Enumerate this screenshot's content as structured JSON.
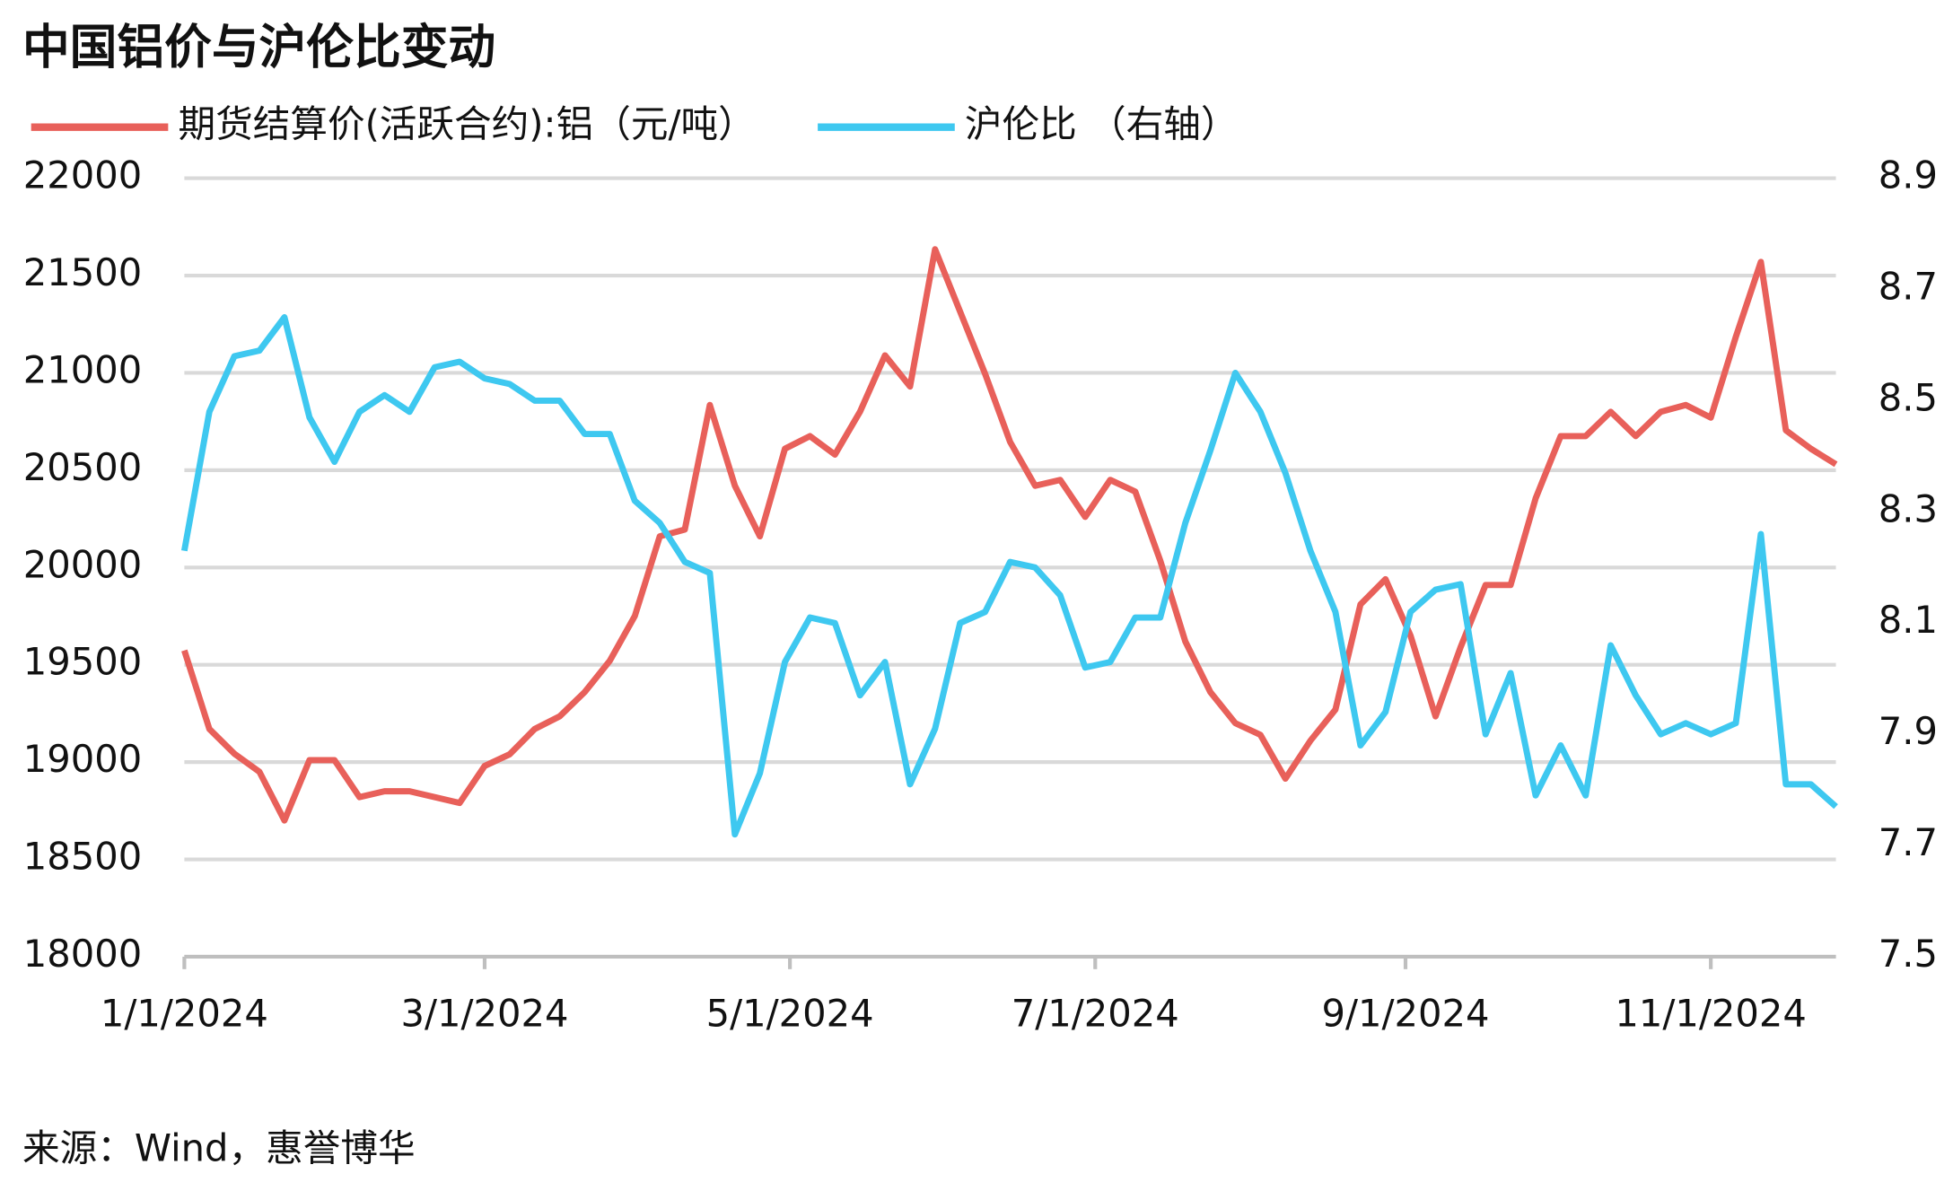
{
  "chart_data": {
    "type": "line",
    "title": "中国铝价与沪伦比变动",
    "source": "来源：Wind，惠誉博华",
    "x": [
      "2024-01-01",
      "2024-01-06",
      "2024-01-11",
      "2024-01-16",
      "2024-01-21",
      "2024-01-26",
      "2024-01-31",
      "2024-02-05",
      "2024-02-10",
      "2024-02-15",
      "2024-02-20",
      "2024-02-25",
      "2024-03-01",
      "2024-03-06",
      "2024-03-11",
      "2024-03-16",
      "2024-03-21",
      "2024-03-26",
      "2024-03-31",
      "2024-04-05",
      "2024-04-10",
      "2024-04-15",
      "2024-04-20",
      "2024-04-25",
      "2024-04-30",
      "2024-05-05",
      "2024-05-10",
      "2024-05-15",
      "2024-05-20",
      "2024-05-25",
      "2024-05-30",
      "2024-06-04",
      "2024-06-09",
      "2024-06-14",
      "2024-06-19",
      "2024-06-24",
      "2024-06-29",
      "2024-07-04",
      "2024-07-09",
      "2024-07-14",
      "2024-07-19",
      "2024-07-24",
      "2024-07-29",
      "2024-08-03",
      "2024-08-08",
      "2024-08-13",
      "2024-08-18",
      "2024-08-23",
      "2024-08-28",
      "2024-09-02",
      "2024-09-07",
      "2024-09-12",
      "2024-09-17",
      "2024-09-22",
      "2024-09-27",
      "2024-10-02",
      "2024-10-07",
      "2024-10-12",
      "2024-10-17",
      "2024-10-22",
      "2024-10-27",
      "2024-11-01",
      "2024-11-06",
      "2024-11-11",
      "2024-11-16",
      "2024-11-21",
      "2024-11-26"
    ],
    "series": [
      {
        "name": "期货结算价(活跃合约):铝（元/吨）",
        "color": "#e8605a",
        "values": [
          19574,
          19170,
          19043,
          18950,
          18700,
          19010,
          19010,
          18820,
          18850,
          18850,
          18820,
          18790,
          18980,
          19040,
          19170,
          19235,
          19360,
          19520,
          19750,
          20160,
          20195,
          20835,
          20420,
          20160,
          20610,
          20675,
          20580,
          20800,
          21090,
          20930,
          21635,
          21315,
          20995,
          20645,
          20420,
          20450,
          20260,
          20450,
          20390,
          20035,
          19620,
          19360,
          19200,
          19140,
          18915,
          19110,
          19270,
          19810,
          19940,
          19650,
          19235,
          19590,
          19910,
          19910,
          20355,
          20675,
          20675,
          20800,
          20675,
          20800,
          20835,
          20770,
          21185,
          21570,
          20705,
          20610,
          20530
        ]
      },
      {
        "name": "沪伦比 （右轴）",
        "color": "#3ec8f0",
        "axis": "y2",
        "values": [
          8.23,
          8.48,
          8.58,
          8.59,
          8.65,
          8.47,
          8.39,
          8.48,
          8.51,
          8.48,
          8.56,
          8.57,
          8.54,
          8.53,
          8.5,
          8.5,
          8.44,
          8.44,
          8.32,
          8.28,
          8.21,
          8.19,
          7.72,
          7.83,
          8.03,
          8.11,
          8.1,
          7.97,
          8.03,
          7.81,
          7.91,
          8.1,
          8.12,
          8.21,
          8.2,
          8.15,
          8.02,
          8.03,
          8.11,
          8.11,
          8.28,
          8.41,
          8.55,
          8.48,
          8.37,
          8.23,
          8.12,
          7.88,
          7.94,
          8.12,
          8.16,
          8.17,
          7.9,
          8.01,
          7.79,
          7.88,
          7.79,
          8.06,
          7.97,
          7.9,
          7.92,
          7.9,
          7.92,
          8.26,
          7.81,
          7.81,
          7.77
        ]
      }
    ],
    "xlim": [
      "2024-01-01",
      "2024-11-26"
    ],
    "xticks": [
      {
        "value": "2024-01-01",
        "label": "1/1/2024"
      },
      {
        "value": "2024-03-01",
        "label": "3/1/2024"
      },
      {
        "value": "2024-05-01",
        "label": "5/1/2024"
      },
      {
        "value": "2024-07-01",
        "label": "7/1/2024"
      },
      {
        "value": "2024-09-01",
        "label": "9/1/2024"
      },
      {
        "value": "2024-11-01",
        "label": "11/1/2024"
      }
    ],
    "ylim": [
      18000,
      22000
    ],
    "yticks": [
      18000,
      18500,
      19000,
      19500,
      20000,
      20500,
      21000,
      21500,
      22000
    ],
    "y2lim": [
      7.5,
      8.9
    ],
    "y2ticks": [
      7.5,
      7.7,
      7.9,
      8.1,
      8.3,
      8.5,
      8.7,
      8.9
    ],
    "grid": true
  }
}
